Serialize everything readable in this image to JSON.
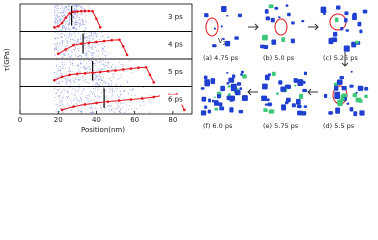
{
  "chart_data": {
    "type": "line",
    "ylabel": "τ(GPa)",
    "xlabel": "Position(nm)",
    "xlim": [
      0,
      90
    ],
    "xticks": [
      0,
      20,
      40,
      60,
      80
    ],
    "ylim": [
      0,
      1
    ],
    "color": "#e8141e",
    "panels": [
      {
        "label": "3 ps",
        "front": 27,
        "x": [
          18,
          20,
          22,
          24,
          26,
          28,
          30,
          32,
          34,
          36,
          38,
          40,
          42
        ],
        "values": [
          0.1,
          0.15,
          0.3,
          0.55,
          0.75,
          0.82,
          0.84,
          0.85,
          0.86,
          0.86,
          0.85,
          0.5,
          0.1
        ]
      },
      {
        "label": "4 ps",
        "front": 33,
        "x": [
          20,
          24,
          28,
          32,
          36,
          40,
          44,
          48,
          52,
          54,
          56
        ],
        "values": [
          0.15,
          0.35,
          0.55,
          0.62,
          0.66,
          0.7,
          0.74,
          0.78,
          0.8,
          0.5,
          0.1
        ]
      },
      {
        "label": "5 ps",
        "front": 38,
        "x": [
          18,
          22,
          26,
          30,
          34,
          38,
          42,
          46,
          50,
          54,
          58,
          62,
          66,
          68,
          70
        ],
        "values": [
          0.2,
          0.35,
          0.45,
          0.5,
          0.52,
          0.55,
          0.58,
          0.62,
          0.65,
          0.7,
          0.74,
          0.78,
          0.8,
          0.45,
          0.1
        ]
      },
      {
        "label": "6 ps",
        "front": 44,
        "x": [
          22,
          28,
          34,
          40,
          46,
          52,
          58,
          64,
          70,
          74,
          78,
          82,
          84,
          86
        ],
        "values": [
          0.1,
          0.25,
          0.35,
          0.42,
          0.48,
          0.53,
          0.58,
          0.63,
          0.7,
          0.76,
          0.8,
          0.82,
          0.45,
          0.1
        ]
      }
    ]
  },
  "snapshots": {
    "defect_label": "V",
    "defect_sub": "2",
    "captions": [
      "(a) 4.75 ps",
      "(b) 5.0 ps",
      "(c) 5.25 ps",
      "(d) 5.5 ps",
      "(e) 5.75 ps",
      "(f) 6.0 ps"
    ]
  }
}
